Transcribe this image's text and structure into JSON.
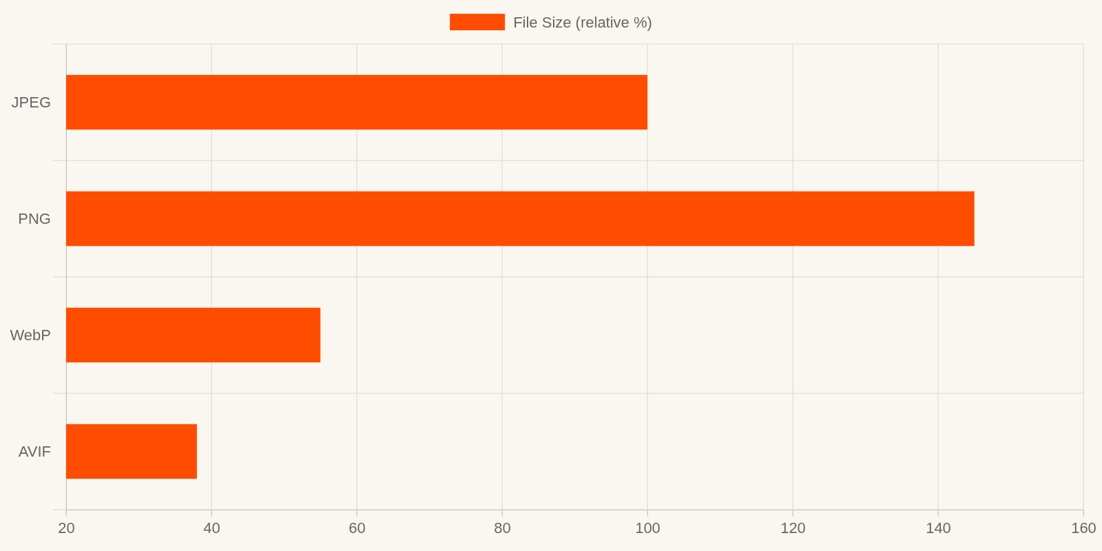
{
  "chart_data": {
    "type": "bar",
    "orientation": "horizontal",
    "categories": [
      "JPEG",
      "PNG",
      "WebP",
      "AVIF"
    ],
    "series": [
      {
        "name": "File Size (relative %)",
        "color": "#ff4d00",
        "values": [
          100,
          145,
          55,
          38
        ]
      }
    ],
    "xlim": [
      20,
      160
    ],
    "xticks": [
      20,
      40,
      60,
      80,
      100,
      120,
      140,
      160
    ],
    "grid": true,
    "legend": "top"
  }
}
